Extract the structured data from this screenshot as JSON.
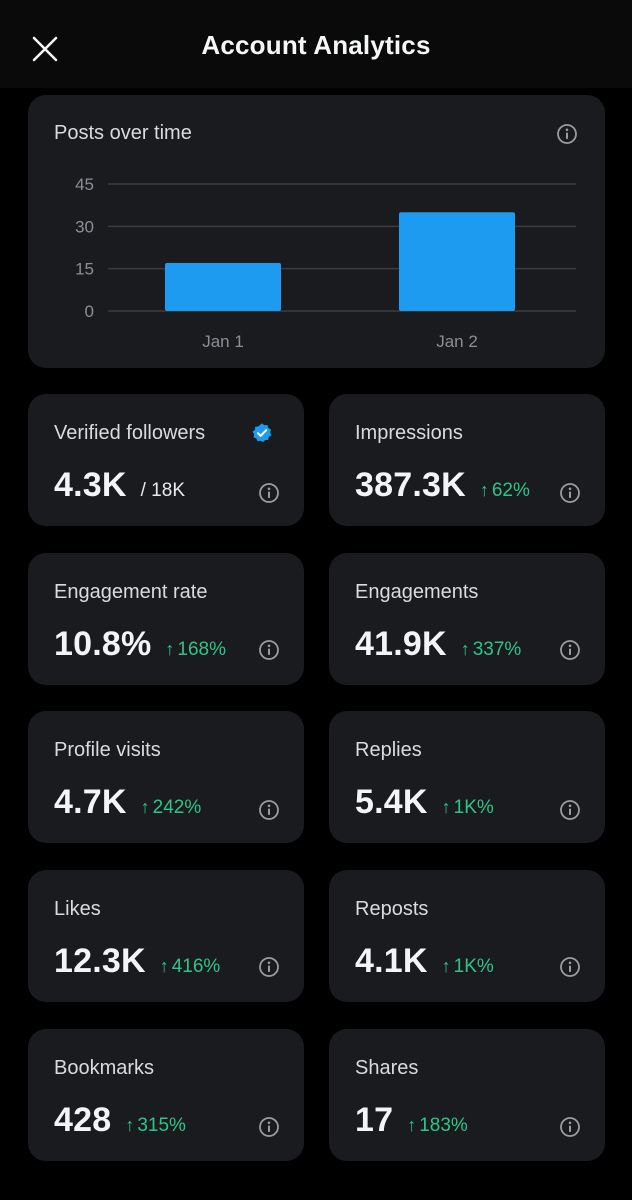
{
  "header": {
    "title": "Account Analytics"
  },
  "chart": {
    "title": "Posts over time"
  },
  "chart_data": {
    "type": "bar",
    "title": "Posts over time",
    "categories": [
      "Jan 1",
      "Jan 2"
    ],
    "values": [
      17,
      35
    ],
    "yticks": [
      0,
      15,
      30,
      45
    ],
    "ylim": [
      0,
      45
    ],
    "xlabel": "",
    "ylabel": "",
    "grid": true,
    "bar_color": "#1d9bf0"
  },
  "stats": {
    "verified_followers": {
      "label": "Verified followers",
      "value": "4.3K",
      "total": "/ 18K"
    },
    "impressions": {
      "label": "Impressions",
      "value": "387.3K",
      "change": "62%"
    },
    "engagement_rate": {
      "label": "Engagement rate",
      "value": "10.8%",
      "change": "168%"
    },
    "engagements": {
      "label": "Engagements",
      "value": "41.9K",
      "change": "337%"
    },
    "profile_visits": {
      "label": "Profile visits",
      "value": "4.7K",
      "change": "242%"
    },
    "replies": {
      "label": "Replies",
      "value": "5.4K",
      "change": "1K%"
    },
    "likes": {
      "label": "Likes",
      "value": "12.3K",
      "change": "416%"
    },
    "reposts": {
      "label": "Reposts",
      "value": "4.1K",
      "change": "1K%"
    },
    "bookmarks": {
      "label": "Bookmarks",
      "value": "428",
      "change": "315%"
    },
    "shares": {
      "label": "Shares",
      "value": "17",
      "change": "183%"
    }
  },
  "symbols": {
    "up_arrow": "↑"
  },
  "colors": {
    "accent": "#1d9bf0",
    "positive": "#2fc487",
    "card": "#1a1b1f",
    "background": "#000000"
  },
  "icons": {
    "close": "close-icon",
    "info": "info-icon",
    "verified": "verified-badge-icon"
  }
}
